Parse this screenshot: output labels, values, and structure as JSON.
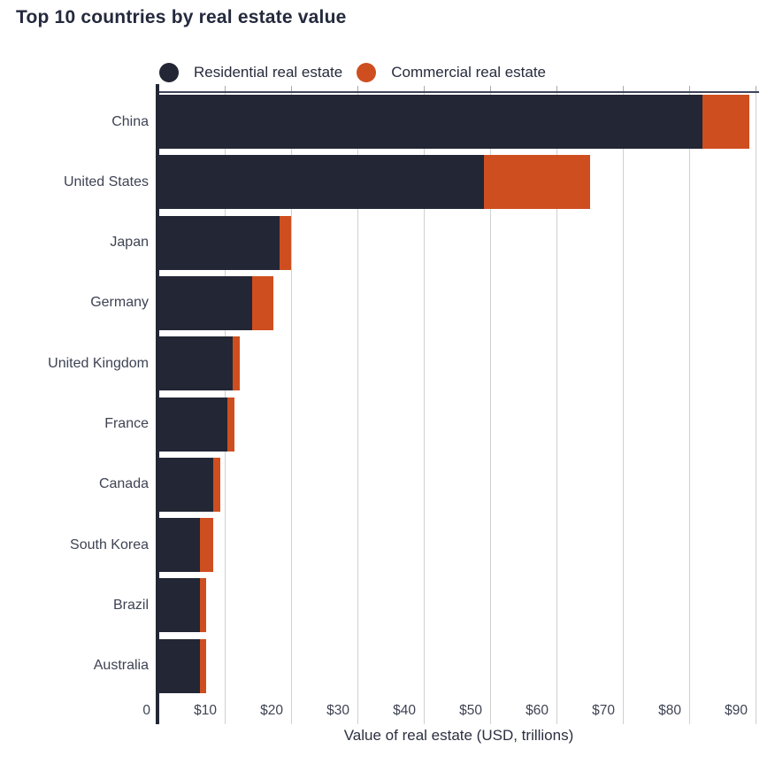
{
  "title": "Top 10 countries by real estate value",
  "x_axis_title": "Value of real estate (USD, trillions)",
  "colors": {
    "residential": "#232634",
    "commercial": "#ce4e1f",
    "gridline": "#d0d0d0",
    "text": "#3e4353"
  },
  "chart_data": {
    "type": "bar",
    "orientation": "horizontal",
    "stacked": true,
    "title": "Top 10 countries by real estate value",
    "xlabel": "Value of real estate (USD, trillions)",
    "ylabel": "",
    "categories": [
      "China",
      "United States",
      "Japan",
      "Germany",
      "United Kingdom",
      "France",
      "Canada",
      "South Korea",
      "Brazil",
      "Australia"
    ],
    "series": [
      {
        "name": "Residential real estate",
        "color": "#232634",
        "values": [
          82,
          49,
          18.3,
          14.1,
          11.2,
          10.4,
          8.3,
          6.3,
          6.2,
          6.2
        ]
      },
      {
        "name": "Commercial real estate",
        "color": "#ce4e1f",
        "values": [
          7,
          16,
          1.7,
          3.2,
          1.1,
          1.1,
          1.0,
          2.0,
          1.0,
          1.0
        ]
      }
    ],
    "totals": [
      89,
      65,
      20,
      17.3,
      12.3,
      11.5,
      9.3,
      8.3,
      7.2,
      7.2
    ],
    "x_ticks": [
      {
        "value": 0,
        "label": "0"
      },
      {
        "value": 10,
        "label": "$10"
      },
      {
        "value": 20,
        "label": "$20"
      },
      {
        "value": 30,
        "label": "$30"
      },
      {
        "value": 40,
        "label": "$40"
      },
      {
        "value": 50,
        "label": "$50"
      },
      {
        "value": 60,
        "label": "$60"
      },
      {
        "value": 70,
        "label": "$70"
      },
      {
        "value": 80,
        "label": "$80"
      },
      {
        "value": 90,
        "label": "$90"
      }
    ],
    "xlim": [
      0,
      90.5
    ],
    "grid": true,
    "legend_position": "top"
  }
}
